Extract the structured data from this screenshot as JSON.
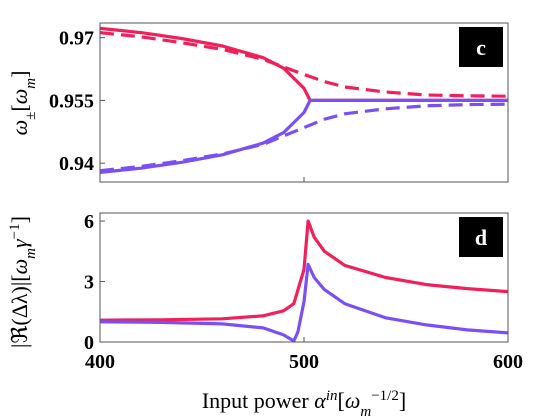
{
  "colors": {
    "pink": "#f0205a",
    "purple": "#7a50f5",
    "frame": "#555555"
  },
  "chart_data": [
    {
      "type": "line",
      "panel_label": "c",
      "ylabel": "ω±[ωm]",
      "xlim": [
        400,
        600
      ],
      "ylim": [
        0.9355,
        0.9735
      ],
      "yticks": [
        0.94,
        0.955,
        0.97
      ],
      "ytick_labels": [
        "0.94",
        "0.955",
        "0.97"
      ],
      "series": [
        {
          "color": "pink",
          "style": "solid",
          "x": [
            400,
            420,
            440,
            460,
            480,
            490,
            500,
            503,
            520,
            560,
            600
          ],
          "y": [
            0.9722,
            0.9712,
            0.9698,
            0.968,
            0.9652,
            0.9627,
            0.9579,
            0.955,
            0.955,
            0.955,
            0.955
          ]
        },
        {
          "color": "pink",
          "style": "dashed",
          "x": [
            400,
            420,
            440,
            460,
            480,
            500,
            510,
            520,
            540,
            560,
            580,
            600
          ],
          "y": [
            0.9712,
            0.9702,
            0.9688,
            0.9672,
            0.9648,
            0.9612,
            0.9595,
            0.9582,
            0.957,
            0.9563,
            0.9561,
            0.956
          ]
        },
        {
          "color": "purple",
          "style": "solid",
          "x": [
            400,
            420,
            440,
            460,
            480,
            490,
            500,
            503,
            520,
            560,
            600
          ],
          "y": [
            0.9378,
            0.9388,
            0.9402,
            0.942,
            0.9448,
            0.9473,
            0.9521,
            0.955,
            0.955,
            0.955,
            0.955
          ]
        },
        {
          "color": "purple",
          "style": "dashed",
          "x": [
            400,
            420,
            440,
            460,
            480,
            500,
            510,
            520,
            540,
            560,
            580,
            600
          ],
          "y": [
            0.9382,
            0.9392,
            0.9406,
            0.9422,
            0.9445,
            0.9485,
            0.9505,
            0.9518,
            0.953,
            0.9537,
            0.954,
            0.9541
          ]
        }
      ]
    },
    {
      "type": "line",
      "panel_label": "d",
      "ylabel": "|ℜ(Δλ)|[ωmγ⁻¹]",
      "xlabel": "Input power α^in[ωm^−1/2]",
      "xlim": [
        400,
        600
      ],
      "xticks": [
        400,
        500,
        600
      ],
      "xtick_labels": [
        "400",
        "500",
        "600"
      ],
      "ylim": [
        0,
        6.4
      ],
      "yticks": [
        0,
        3,
        6
      ],
      "ytick_labels": [
        "0",
        "3",
        "6"
      ],
      "series": [
        {
          "color": "pink",
          "style": "solid",
          "x": [
            400,
            430,
            460,
            480,
            490,
            495,
            500,
            502,
            505,
            510,
            520,
            540,
            560,
            580,
            600
          ],
          "y": [
            1.08,
            1.1,
            1.15,
            1.3,
            1.55,
            1.9,
            3.6,
            6.0,
            5.2,
            4.5,
            3.8,
            3.2,
            2.85,
            2.65,
            2.5
          ]
        },
        {
          "color": "purple",
          "style": "solid",
          "x": [
            400,
            430,
            460,
            480,
            490,
            495,
            497,
            500,
            502,
            505,
            510,
            520,
            540,
            560,
            580,
            600
          ],
          "y": [
            1.0,
            0.97,
            0.9,
            0.7,
            0.35,
            0.05,
            0.5,
            2.0,
            3.85,
            3.2,
            2.6,
            1.9,
            1.2,
            0.85,
            0.6,
            0.45
          ]
        }
      ]
    }
  ]
}
